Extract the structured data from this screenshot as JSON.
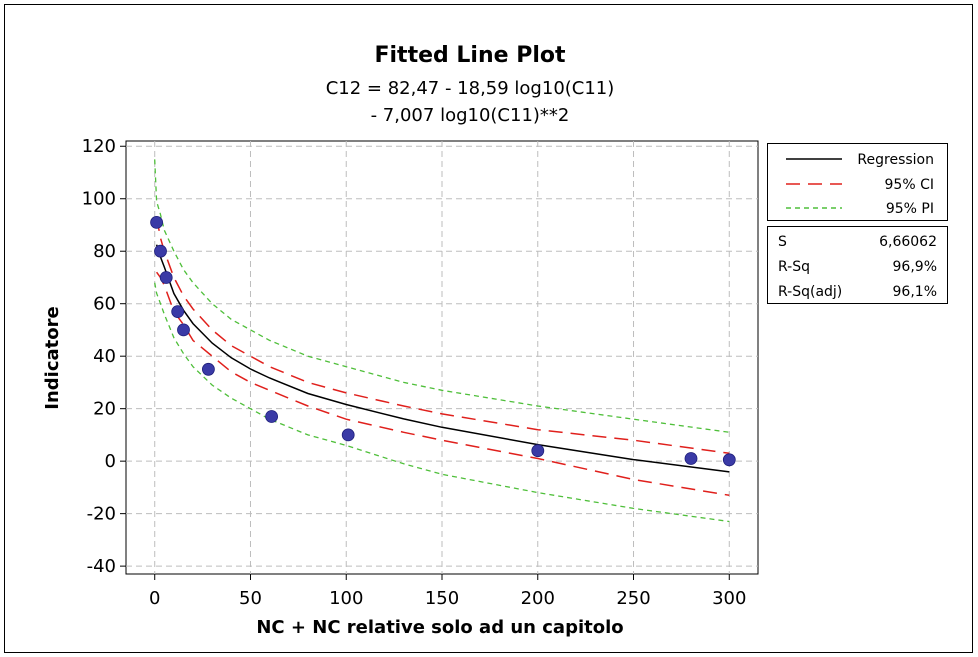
{
  "chart_data": {
    "type": "scatter",
    "title": "Fitted Line Plot",
    "equation": [
      "C12 =  82,47 - 18,59 log10(C11)",
      "- 7,007 log10(C11)**2"
    ],
    "xlabel": "NC  + NC relative solo ad un capitolo",
    "ylabel": "Indicatore",
    "xlim": [
      -15,
      315
    ],
    "ylim": [
      -43,
      122
    ],
    "xticks": [
      0,
      50,
      100,
      150,
      200,
      250,
      300
    ],
    "yticks": [
      -40,
      -20,
      0,
      20,
      40,
      60,
      80,
      100,
      120
    ],
    "grid": true,
    "legend_position": "right",
    "colors": {
      "points": "#3a3aa6",
      "regression": "#000000",
      "ci": "#e0201c",
      "pi": "#4fbf3a",
      "grid": "#bdbdbd"
    },
    "series": [
      {
        "name": "Regression",
        "style": "solid",
        "x": [
          1,
          3,
          5,
          10,
          15,
          20,
          30,
          40,
          50,
          60,
          80,
          100,
          130,
          150,
          200,
          250,
          300
        ],
        "y": [
          82.5,
          77.8,
          74.0,
          63.9,
          57.5,
          52.4,
          45.0,
          39.4,
          35.1,
          31.7,
          25.8,
          21.6,
          16.1,
          12.9,
          6.3,
          0.6,
          -4.1
        ]
      },
      {
        "name": "95% CI",
        "style": "dashed",
        "upper": {
          "x": [
            1,
            3,
            5,
            10,
            15,
            20,
            30,
            40,
            50,
            60,
            80,
            100,
            130,
            150,
            200,
            250,
            300
          ],
          "y": [
            93,
            85,
            80,
            70,
            63,
            58,
            50,
            44,
            40,
            36,
            30,
            26,
            21,
            18,
            12,
            8,
            3
          ]
        },
        "lower": {
          "x": [
            1,
            3,
            5,
            10,
            15,
            20,
            30,
            40,
            50,
            60,
            80,
            100,
            130,
            150,
            200,
            250,
            300
          ],
          "y": [
            72,
            70,
            67,
            57,
            52,
            46,
            40,
            34,
            30,
            27,
            21,
            16,
            11,
            8,
            1,
            -7,
            -13
          ]
        }
      },
      {
        "name": "95% PI",
        "style": "dashed",
        "upper": {
          "x": [
            0,
            1,
            3,
            5,
            10,
            15,
            20,
            30,
            40,
            50,
            60,
            80,
            100,
            130,
            150,
            200,
            250,
            300
          ],
          "y": [
            115,
            99,
            94,
            88,
            80,
            73,
            68,
            60,
            54,
            50,
            46,
            40,
            36,
            30,
            27,
            21,
            16,
            11
          ]
        },
        "lower": {
          "x": [
            0,
            1,
            3,
            5,
            10,
            15,
            20,
            30,
            40,
            50,
            60,
            80,
            100,
            130,
            150,
            200,
            250,
            300
          ],
          "y": [
            68,
            64,
            60,
            56,
            47,
            41,
            36,
            29,
            24,
            20,
            16,
            10,
            6,
            -1,
            -5,
            -12,
            -18,
            -23
          ]
        }
      }
    ],
    "points": {
      "x": [
        1,
        3,
        6,
        12,
        15,
        28,
        61,
        101,
        200,
        280,
        300
      ],
      "y": [
        91,
        80,
        70,
        57,
        50,
        35,
        17,
        10,
        4,
        1,
        0.5
      ]
    },
    "legend": [
      "Regression",
      "95% CI",
      "95% PI"
    ],
    "stats": [
      {
        "label": "S",
        "value": "6,66062"
      },
      {
        "label": "R-Sq",
        "value": "96,9%"
      },
      {
        "label": "R-Sq(adj)",
        "value": "96,1%"
      }
    ]
  }
}
